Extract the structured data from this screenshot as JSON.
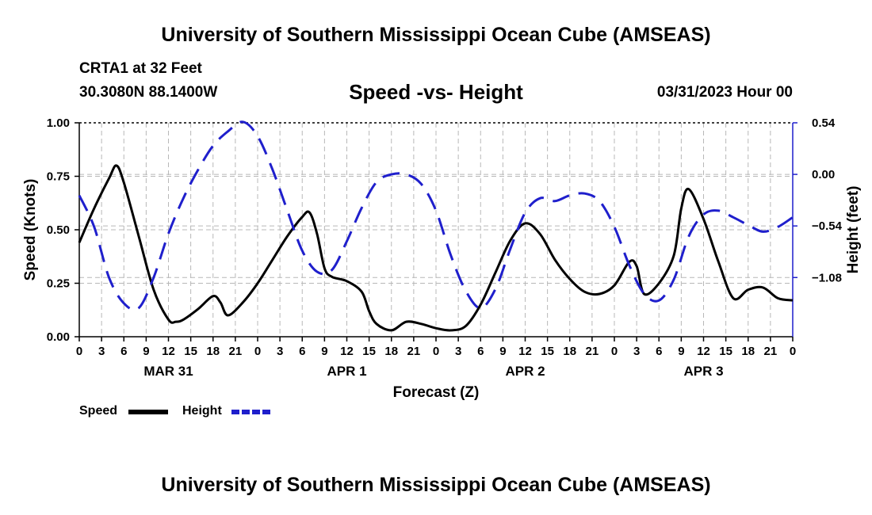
{
  "header": {
    "title": "University of Southern Mississippi Ocean Cube (AMSEAS)",
    "station": "CRTA1 at 32 Feet",
    "coords": "30.3080N  88.1400W",
    "subtitle": "Speed -vs- Height",
    "datetime": "03/31/2023 Hour 00"
  },
  "footer": {
    "title": "University of Southern Mississippi Ocean Cube (AMSEAS)"
  },
  "chart_data": {
    "type": "line",
    "title": "Speed -vs- Height",
    "xlabel": "Forecast (Z)",
    "ylabel": "Speed (Knots)",
    "y2label": "Height (feet)",
    "xlim": [
      0,
      96
    ],
    "ylim": [
      0,
      1.0
    ],
    "y2lim": [
      -1.7,
      0.54
    ],
    "yticks": [
      "0.00",
      "0.25",
      "0.50",
      "0.75",
      "1.00"
    ],
    "yticks_values": [
      0,
      0.25,
      0.5,
      0.75,
      1.0
    ],
    "y2ticks": [
      "−1.08",
      "−0.54",
      "0.00",
      "0.54"
    ],
    "y2ticks_values": [
      -1.08,
      -0.54,
      0.0,
      0.54
    ],
    "xticks": [
      "0",
      "3",
      "6",
      "9",
      "12",
      "15",
      "18",
      "21",
      "0",
      "3",
      "6",
      "9",
      "12",
      "15",
      "18",
      "21",
      "0",
      "3",
      "6",
      "9",
      "12",
      "15",
      "18",
      "21",
      "0",
      "3",
      "6",
      "9",
      "12",
      "15",
      "18",
      "21",
      "0"
    ],
    "day_labels": [
      {
        "label": "MAR 31",
        "x": 12
      },
      {
        "label": "APR 1",
        "x": 36
      },
      {
        "label": "APR 2",
        "x": 60
      },
      {
        "label": "APR 3",
        "x": 84
      }
    ],
    "grid": true,
    "series": [
      {
        "name": "Speed",
        "axis": "left",
        "color": "#000000",
        "dash": "solid",
        "x": [
          0,
          2,
          4,
          5,
          6,
          8,
          10,
          12,
          13,
          14,
          16,
          18,
          19,
          20,
          22,
          24,
          26,
          28,
          30,
          31,
          32,
          33,
          34,
          36,
          38,
          39,
          40,
          42,
          44,
          46,
          48,
          50,
          52,
          54,
          56,
          58,
          60,
          62,
          64,
          66,
          68,
          70,
          72,
          74,
          75,
          76,
          78,
          80,
          81,
          82,
          84,
          86,
          88,
          90,
          92,
          94,
          96
        ],
        "values": [
          0.44,
          0.6,
          0.74,
          0.8,
          0.72,
          0.47,
          0.22,
          0.08,
          0.07,
          0.08,
          0.13,
          0.19,
          0.16,
          0.1,
          0.16,
          0.25,
          0.36,
          0.47,
          0.56,
          0.58,
          0.48,
          0.32,
          0.28,
          0.26,
          0.21,
          0.12,
          0.06,
          0.03,
          0.07,
          0.06,
          0.04,
          0.03,
          0.05,
          0.15,
          0.3,
          0.45,
          0.53,
          0.48,
          0.36,
          0.27,
          0.21,
          0.2,
          0.24,
          0.35,
          0.33,
          0.2,
          0.25,
          0.38,
          0.6,
          0.69,
          0.55,
          0.35,
          0.18,
          0.22,
          0.23,
          0.18,
          0.17
        ]
      },
      {
        "name": "Height",
        "axis": "right",
        "color": "#1f1fcc",
        "dash": "dashed",
        "x": [
          0,
          2,
          4,
          6,
          8,
          10,
          12,
          14,
          16,
          18,
          20,
          22,
          24,
          26,
          28,
          30,
          32,
          34,
          36,
          38,
          40,
          42,
          44,
          46,
          48,
          50,
          52,
          54,
          56,
          58,
          60,
          62,
          64,
          66,
          68,
          70,
          72,
          74,
          76,
          78,
          80,
          82,
          84,
          86,
          88,
          90,
          92,
          94,
          96
        ],
        "values": [
          -0.22,
          -0.55,
          -1.08,
          -1.35,
          -1.4,
          -1.08,
          -0.62,
          -0.25,
          0.05,
          0.3,
          0.45,
          0.55,
          0.4,
          0.05,
          -0.38,
          -0.8,
          -1.02,
          -1.0,
          -0.7,
          -0.35,
          -0.08,
          0.0,
          0.0,
          -0.1,
          -0.38,
          -0.85,
          -1.22,
          -1.4,
          -1.2,
          -0.78,
          -0.4,
          -0.25,
          -0.28,
          -0.22,
          -0.2,
          -0.28,
          -0.55,
          -0.95,
          -1.25,
          -1.32,
          -1.1,
          -0.65,
          -0.42,
          -0.38,
          -0.45,
          -0.53,
          -0.6,
          -0.55,
          -0.45
        ]
      }
    ],
    "legend": [
      {
        "name": "Speed",
        "color": "#000000",
        "dash": "solid"
      },
      {
        "name": "Height",
        "color": "#1f1fcc",
        "dash": "dashed"
      }
    ],
    "legend_position": "bottom-left"
  }
}
